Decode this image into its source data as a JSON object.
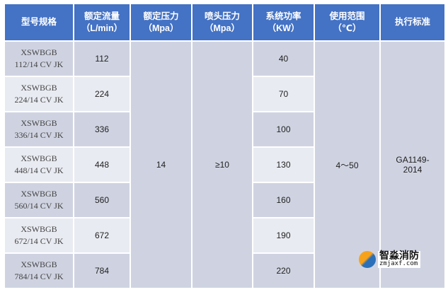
{
  "headers": [
    {
      "line1": "型号规格",
      "line2": ""
    },
    {
      "line1": "额定流量",
      "line2": "（L/min）"
    },
    {
      "line1": "额定压力",
      "line2": "（Mpa）"
    },
    {
      "line1": "喷头压力",
      "line2": "（Mpa）"
    },
    {
      "line1": "系统功率",
      "line2": "（KW）"
    },
    {
      "line1": "使用范围",
      "line2": "（℃）"
    },
    {
      "line1": "执行标准",
      "line2": ""
    }
  ],
  "rows": [
    {
      "model1": "XSWBGB",
      "model2": "112/14 CV JK",
      "flow": "112",
      "power": "40"
    },
    {
      "model1": "XSWBGB",
      "model2": "224/14 CV JK",
      "flow": "224",
      "power": "70"
    },
    {
      "model1": "XSWBGB",
      "model2": "336/14 CV JK",
      "flow": "336",
      "power": "100"
    },
    {
      "model1": "XSWBGB",
      "model2": "448/14 CV JK",
      "flow": "448",
      "power": "130"
    },
    {
      "model1": "XSWBGB",
      "model2": "560/14 CV JK",
      "flow": "560",
      "power": "160"
    },
    {
      "model1": "XSWBGB",
      "model2": "672/14 CV JK",
      "flow": "672",
      "power": "190"
    },
    {
      "model1": "XSWBGB",
      "model2": "784/14 CV JK",
      "flow": "784",
      "power": "220"
    }
  ],
  "merged": {
    "rated_pressure": "14",
    "nozzle_pressure": "≥10",
    "temp_range": "4～50",
    "standard_line1": "GA1149-",
    "standard_line2": "2014"
  },
  "watermark": {
    "name": "智淼消防",
    "url": "zmjaxf.com"
  },
  "colors": {
    "header": "#4472c4",
    "row_dark": "#cfd3e1",
    "row_light": "#e9ebf2"
  }
}
